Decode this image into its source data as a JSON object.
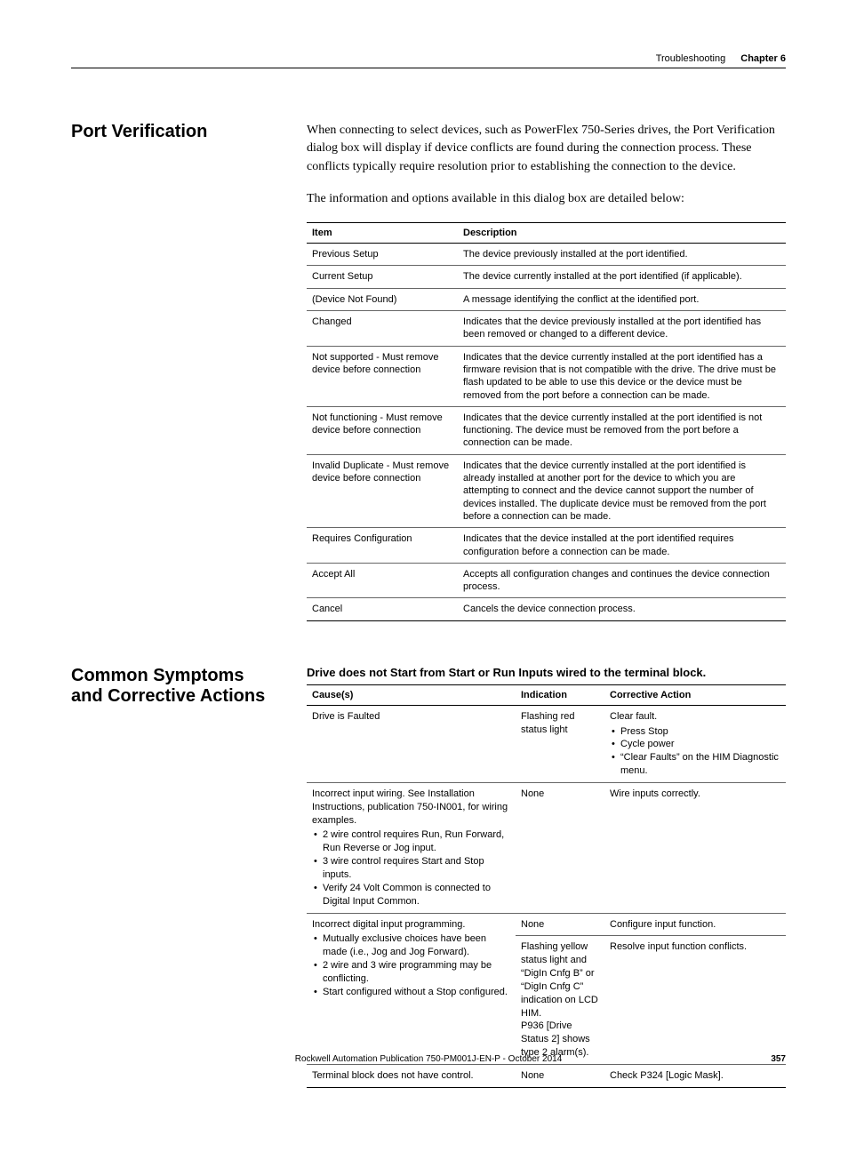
{
  "header": {
    "section": "Troubleshooting",
    "chapter_label": "Chapter 6"
  },
  "port_verification": {
    "title": "Port Verification",
    "para1": "When connecting to select devices, such as PowerFlex 750-Series drives, the Port Verification dialog box will display if device conflicts are found during the connection process. These conflicts typically require resolution prior to establishing the connection to the device.",
    "para2": "The information and options available in this dialog box are detailed below:",
    "col_item": "Item",
    "col_desc": "Description",
    "rows": [
      {
        "item": "Previous Setup",
        "desc": "The device previously installed at the port identified."
      },
      {
        "item": "Current Setup",
        "desc": "The device currently installed at the port identified (if applicable)."
      },
      {
        "item": "(Device Not Found)",
        "desc": "A message identifying the conflict at the identified port."
      },
      {
        "item": "Changed",
        "desc": "Indicates that the device previously installed at the port identified has been removed or changed to a different device."
      },
      {
        "item": "Not supported - Must remove device before connection",
        "desc": "Indicates that the device currently installed at the port identified has a firmware revision that is not compatible with the drive. The drive must be flash updated to be able to use this device or the device must be removed from the port before a connection can be made."
      },
      {
        "item": "Not functioning - Must remove device before connection",
        "desc": "Indicates that the device currently installed at the port identified is not functioning. The device must be removed from the port before a connection can be made."
      },
      {
        "item": "Invalid Duplicate - Must remove device before connection",
        "desc": "Indicates that the device currently installed at the port identified is already installed at another port for the device to which you are attempting to connect and the device cannot support the number of devices installed. The duplicate device must be removed from the port before a connection can be made."
      },
      {
        "item": "Requires Configuration",
        "desc": "Indicates that the device installed at the port identified requires configuration before a connection can be made."
      },
      {
        "item": "Accept All",
        "desc": "Accepts all configuration changes and continues the device connection process."
      },
      {
        "item": "Cancel",
        "desc": "Cancels the device connection process."
      }
    ]
  },
  "symptoms": {
    "title": "Common Symptoms and Corrective Actions",
    "sub_heading": "Drive does not Start from Start or Run Inputs wired to the terminal block.",
    "col_cause": "Cause(s)",
    "col_indication": "Indication",
    "col_action": "Corrective Action",
    "row1": {
      "cause": "Drive is Faulted",
      "indication": "Flashing red status light",
      "action_lead": "Clear fault.",
      "action_bullets": [
        "Press Stop",
        "Cycle power",
        "“Clear Faults” on the HIM Diagnostic menu."
      ]
    },
    "row2": {
      "cause_lead": "Incorrect input wiring. See Installation Instructions, publication 750-IN001, for wiring examples.",
      "cause_bullets": [
        "2 wire control requires Run, Run Forward, Run Reverse or Jog input.",
        "3 wire control requires Start and Stop inputs.",
        "Verify 24 Volt Common is connected to Digital Input Common."
      ],
      "indication": "None",
      "action": "Wire inputs correctly."
    },
    "row3": {
      "cause_lead": "Incorrect digital input programming.",
      "cause_bullets": [
        "Mutually exclusive choices have been made (i.e., Jog and Jog Forward).",
        "2 wire and 3 wire programming may be conflicting.",
        "Start configured without a Stop configured."
      ],
      "indication1": "None",
      "action1": "Configure input function.",
      "indication2_l1": "Flashing yellow status light and “DigIn Cnfg B” or",
      "indication2_l2": "“DigIn Cnfg C” indication on LCD HIM.",
      "indication2_l3": "P936 [Drive Status 2] shows type 2 alarm(s).",
      "action2": "Resolve input function conflicts."
    },
    "row4": {
      "cause": "Terminal block does not have control.",
      "indication": "None",
      "action": "Check P324 [Logic Mask]."
    }
  },
  "footer": {
    "publication": "Rockwell Automation Publication 750-PM001J-EN-P - October 2014",
    "page": "357"
  }
}
